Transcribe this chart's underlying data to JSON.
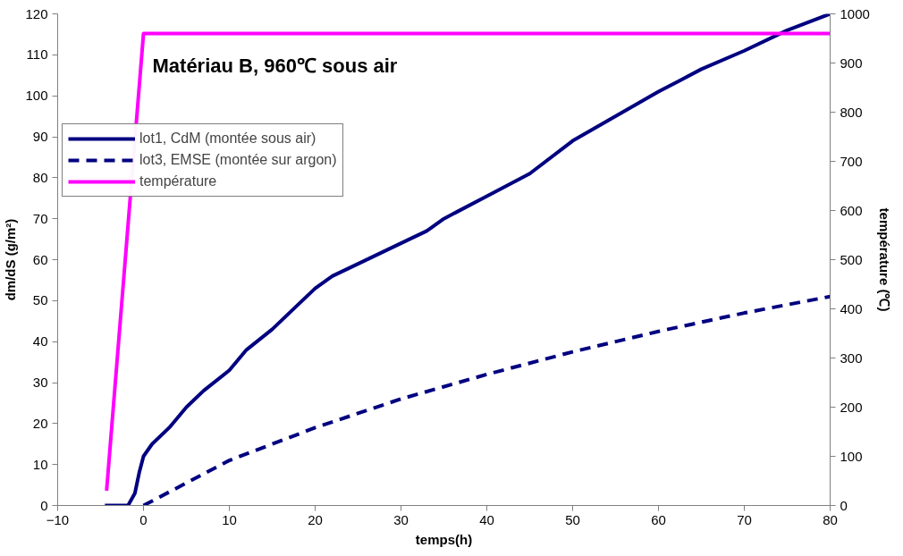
{
  "chart_data": {
    "type": "line",
    "title": "Matériau B, 960℃ sous air",
    "xlabel": "temps(h)",
    "ylabel": "dm/dS (g/m²)",
    "y2label": "température (℃)",
    "xlim": [
      -10,
      80
    ],
    "xticks": [
      -10,
      0,
      10,
      20,
      30,
      40,
      50,
      60,
      70,
      80
    ],
    "ylim": [
      0,
      120
    ],
    "yticks": [
      0,
      10,
      20,
      30,
      40,
      50,
      60,
      70,
      80,
      90,
      100,
      110,
      120
    ],
    "y2lim": [
      0,
      1000
    ],
    "y2ticks": [
      0,
      100,
      200,
      300,
      400,
      500,
      600,
      700,
      800,
      900,
      1000
    ],
    "grid": false,
    "legend": "top left",
    "marker": "none",
    "series": [
      {
        "name": "lot1, CdM (montée sous air)",
        "color": "#000080",
        "line_style": "solid",
        "x": [
          -4.5,
          -3.5,
          -1.8,
          -1,
          -0.5,
          0,
          1,
          3,
          5,
          7,
          10,
          12,
          15,
          18,
          20,
          22,
          25,
          30,
          33,
          35,
          40,
          45,
          50,
          55,
          60,
          65,
          70,
          75,
          80
        ],
        "values": [
          0,
          0,
          0,
          3,
          8,
          12,
          15,
          19,
          24,
          28,
          33,
          38,
          43,
          49,
          53,
          56,
          59,
          64,
          67,
          70,
          75.5,
          81,
          89,
          95,
          101,
          106.5,
          111,
          116,
          120
        ]
      },
      {
        "name": "lot3, EMSE (montée sur argon)",
        "color": "#000080",
        "line_style": "dashed",
        "x": [
          0,
          10,
          20,
          30,
          40,
          50,
          60,
          70,
          80
        ],
        "values": [
          0,
          11,
          19,
          26,
          32,
          37.5,
          42.5,
          47,
          51
        ]
      },
      {
        "name": "température",
        "color": "#ff00ff",
        "line_style": "solid",
        "axis": "y2",
        "x": [
          -4.3,
          0,
          80
        ],
        "values": [
          30,
          960,
          960
        ]
      }
    ]
  }
}
